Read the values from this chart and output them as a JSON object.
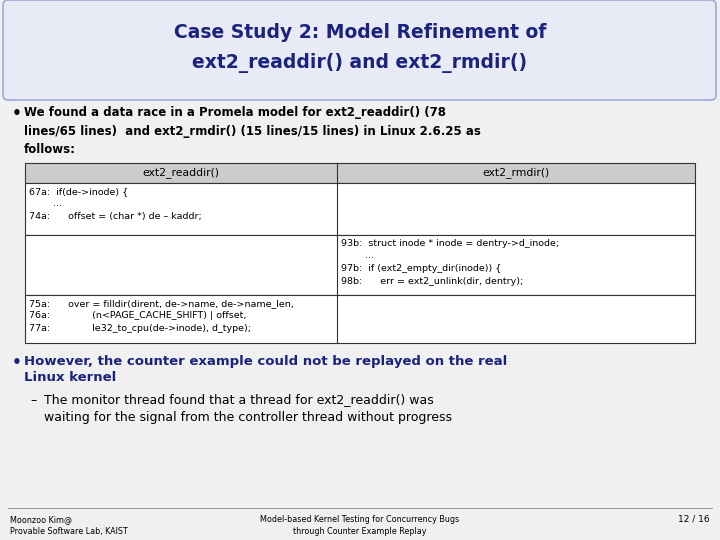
{
  "title_line1": "Case Study 2: Model Refinement of",
  "title_line2": "ext2_readdir() and ext2_rmdir()",
  "title_color": "#1a237e",
  "title_bg_color": "#e8eaf6",
  "title_border_color": "#9fa8da",
  "slide_bg": "#f0f0f0",
  "table_header": [
    "ext2_readdir()",
    "ext2_rmdir()"
  ],
  "table_header_bg": "#cccccc",
  "table_row0_left": "67a:  if(de->inode) {\n        ...\n74a:      offset = (char *) de – kaddr;",
  "table_row0_right": "",
  "table_row1_left": "",
  "table_row1_right": "93b:  struct inode * inode = dentry->d_inode;\n        ...\n97b:  if (ext2_empty_dir(inode)) {\n98b:      err = ext2_unlink(dir, dentry);",
  "table_row2_left": "75a:      over = filldir(dirent, de->name, de->name_len,\n76a:              (n<PAGE_CACHE_SHIFT) | offset,\n77a:              le32_to_cpu(de->inode), d_type);",
  "table_row2_right": "",
  "bullet2_text_line1": "However, the counter example could not be replayed on the real",
  "bullet2_text_line2": "Linux kernel",
  "bullet2_color": "#1a237e",
  "sub_bullet_text": "The monitor thread found that a thread for ext2_readdir() was\nwaiting for the signal from the controller thread without progress",
  "footer_left": "Moonzoo Kim@\nProvable Software Lab, KAIST",
  "footer_center": "Model-based Kernel Testing for Concurrency Bugs\nthrough Counter Example Replay",
  "footer_right": "12 / 16"
}
